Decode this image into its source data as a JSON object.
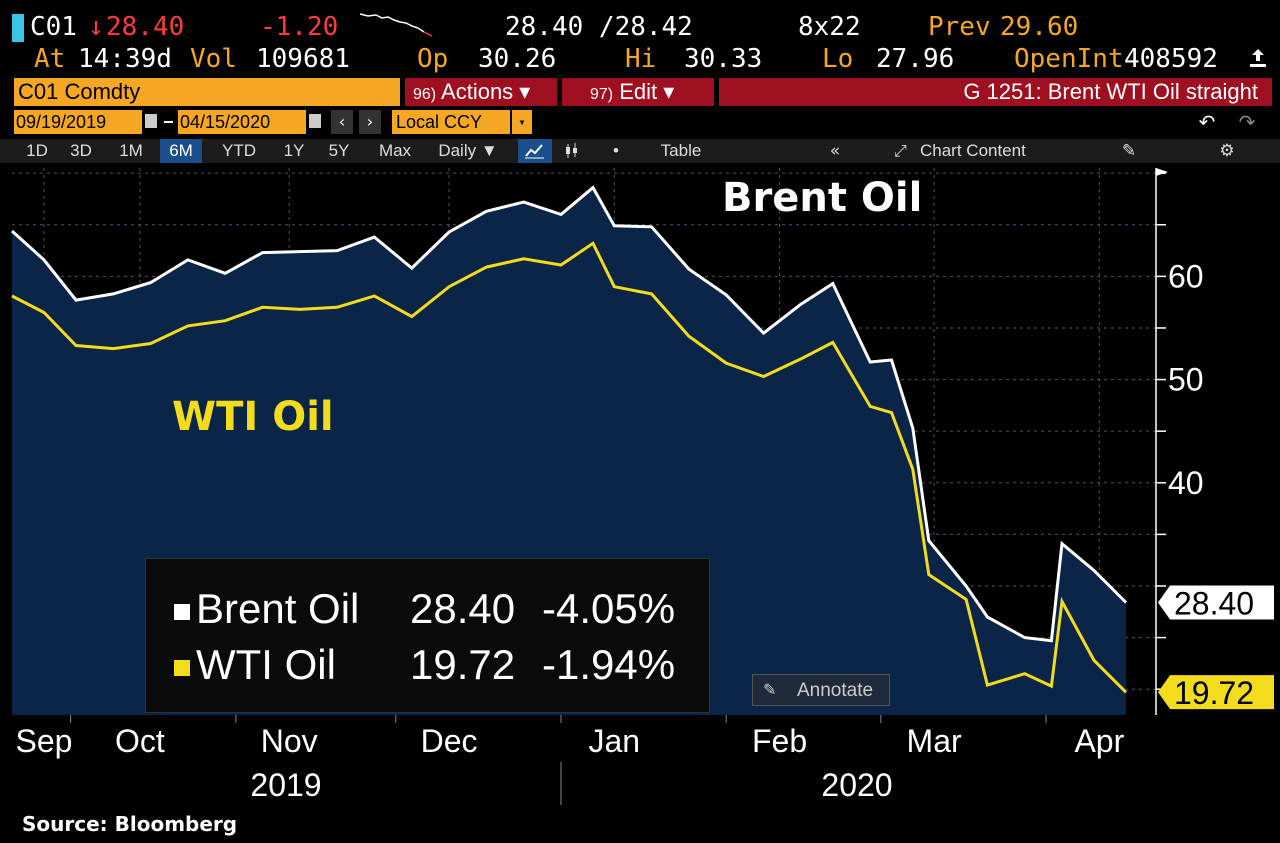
{
  "quote": {
    "ticker": "C01",
    "arrow": "↓",
    "last": "28.40",
    "change": "-1.20",
    "bid_ask": "28.40 /28.42",
    "size": "8x22",
    "prev_label": "Prev",
    "prev": "29.60",
    "at_label": "At",
    "time": "14:39d",
    "vol_label": "Vol",
    "vol": "109681",
    "op_label": "Op",
    "op": "30.26",
    "hi_label": "Hi",
    "hi": "30.33",
    "lo_label": "Lo",
    "lo": "27.96",
    "oi_label": "OpenInt",
    "oi": "408592"
  },
  "toolbar": {
    "security": "C01 Comdty",
    "actions_num": "96)",
    "actions": "Actions ▾",
    "edit_num": "97)",
    "edit": "Edit ▾",
    "chart_title": "G 1251: Brent WTI Oil straight",
    "date_from": "09/19/2019",
    "date_to": "04/15/2020",
    "currency": "Local CCY"
  },
  "periods": [
    "1D",
    "3D",
    "1M",
    "6M",
    "YTD",
    "1Y",
    "5Y",
    "Max"
  ],
  "selected_period": "6M",
  "frequency": "Daily ▼",
  "table_label": "Table",
  "chart_content_label": "Chart Content",
  "colors": {
    "brent": "#ffffff",
    "wti": "#f2dc1b",
    "fill": "#0b2548",
    "amber": "#f5a623",
    "selected": "#1a4f8c"
  },
  "chart_data": {
    "type": "line",
    "title": "",
    "series": [
      {
        "name": "Brent Oil",
        "dates": [
          "2019-09-19",
          "2019-09-25",
          "2019-10-01",
          "2019-10-08",
          "2019-10-15",
          "2019-10-22",
          "2019-10-29",
          "2019-11-05",
          "2019-11-12",
          "2019-11-19",
          "2019-11-26",
          "2019-12-03",
          "2019-12-10",
          "2019-12-17",
          "2019-12-24",
          "2019-12-31",
          "2020-01-06",
          "2020-01-10",
          "2020-01-17",
          "2020-01-24",
          "2020-01-31",
          "2020-02-07",
          "2020-02-14",
          "2020-02-20",
          "2020-02-27",
          "2020-03-02",
          "2020-03-06",
          "2020-03-09",
          "2020-03-16",
          "2020-03-20",
          "2020-03-27",
          "2020-04-01",
          "2020-04-03",
          "2020-04-09",
          "2020-04-15"
        ],
        "values": [
          64.4,
          61.6,
          57.7,
          58.3,
          59.4,
          61.6,
          60.3,
          62.3,
          62.4,
          62.5,
          63.8,
          60.8,
          64.3,
          66.3,
          67.2,
          66.0,
          68.6,
          64.9,
          64.8,
          60.7,
          58.2,
          54.5,
          57.3,
          59.3,
          51.7,
          51.9,
          45.3,
          34.4,
          30.0,
          27.0,
          25.0,
          24.7,
          34.1,
          31.5,
          28.4
        ]
      },
      {
        "name": "WTI Oil",
        "dates": [
          "2019-09-19",
          "2019-09-25",
          "2019-10-01",
          "2019-10-08",
          "2019-10-15",
          "2019-10-22",
          "2019-10-29",
          "2019-11-05",
          "2019-11-12",
          "2019-11-19",
          "2019-11-26",
          "2019-12-03",
          "2019-12-10",
          "2019-12-17",
          "2019-12-24",
          "2019-12-31",
          "2020-01-06",
          "2020-01-10",
          "2020-01-17",
          "2020-01-24",
          "2020-01-31",
          "2020-02-07",
          "2020-02-14",
          "2020-02-20",
          "2020-02-27",
          "2020-03-02",
          "2020-03-06",
          "2020-03-09",
          "2020-03-16",
          "2020-03-20",
          "2020-03-27",
          "2020-04-01",
          "2020-04-03",
          "2020-04-09",
          "2020-04-15"
        ],
        "values": [
          58.1,
          56.5,
          53.3,
          53.0,
          53.5,
          55.2,
          55.7,
          57.0,
          56.8,
          57.0,
          58.1,
          56.1,
          59.0,
          60.9,
          61.7,
          61.1,
          63.2,
          59.0,
          58.3,
          54.2,
          51.6,
          50.3,
          52.0,
          53.6,
          47.4,
          46.8,
          41.3,
          31.1,
          28.7,
          20.4,
          21.5,
          20.3,
          28.5,
          22.8,
          19.7
        ]
      }
    ],
    "x_tick_labels": [
      "Sep",
      "Oct",
      "Nov",
      "Dec",
      "Jan",
      "Feb",
      "Mar",
      "Apr"
    ],
    "x_tick_dates": [
      "2019-09-25",
      "2019-10-13",
      "2019-11-10",
      "2019-12-10",
      "2020-01-10",
      "2020-02-10",
      "2020-03-10",
      "2020-04-10"
    ],
    "year_labels": [
      "2019",
      "2020"
    ],
    "y_ticks": [
      40,
      50,
      60
    ],
    "ylim": [
      17.5,
      70.5
    ],
    "grid": true,
    "series_labels": {
      "brent": "Brent Oil",
      "wti": "WTI Oil"
    },
    "last_labels": {
      "brent": "28.40",
      "wti": "19.72"
    }
  },
  "legend": {
    "brent_name": "Brent Oil",
    "brent_value": "28.40",
    "brent_change": "-4.05%",
    "wti_name": "WTI Oil",
    "wti_value": "19.72",
    "wti_change": "-1.94%"
  },
  "annotate_label": "Annotate",
  "source": "Source: Bloomberg"
}
